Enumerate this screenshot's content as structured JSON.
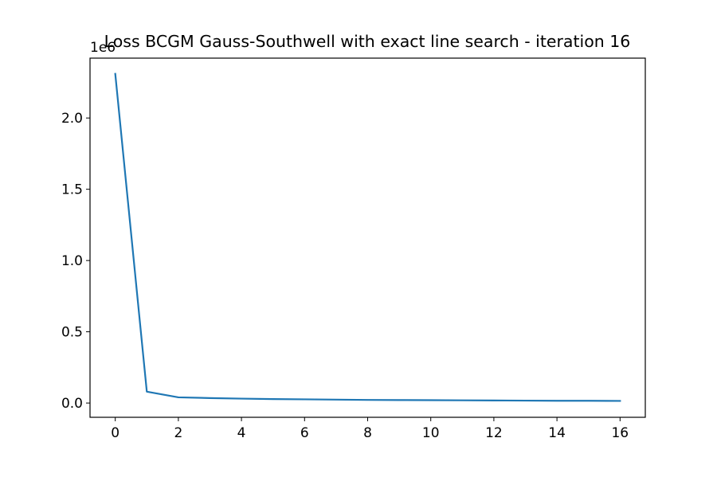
{
  "chart_data": {
    "type": "line",
    "title": "Loss BCGM Gauss-Southwell with exact line search - iteration 16",
    "xlabel": "",
    "ylabel": "",
    "y_offset_label": "1e6",
    "xlim": [
      -0.8,
      16.8
    ],
    "ylim": [
      -0.1,
      2.42
    ],
    "x_ticks": [
      0,
      2,
      4,
      6,
      8,
      10,
      12,
      14,
      16
    ],
    "x_tick_labels": [
      "0",
      "2",
      "4",
      "6",
      "8",
      "10",
      "12",
      "14",
      "16"
    ],
    "y_ticks": [
      0.0,
      0.5,
      1.0,
      1.5,
      2.0
    ],
    "y_tick_labels": [
      "0.0",
      "0.5",
      "1.0",
      "1.5",
      "2.0"
    ],
    "grid": false,
    "series": [
      {
        "color": "#1f77b4",
        "x": [
          0,
          1,
          2,
          3,
          4,
          5,
          6,
          7,
          8,
          9,
          10,
          11,
          12,
          13,
          14,
          15,
          16
        ],
        "y": [
          2.31,
          0.08,
          0.04,
          0.035,
          0.031,
          0.028,
          0.026,
          0.024,
          0.022,
          0.021,
          0.02,
          0.019,
          0.018,
          0.017,
          0.016,
          0.016,
          0.015
        ]
      }
    ]
  }
}
